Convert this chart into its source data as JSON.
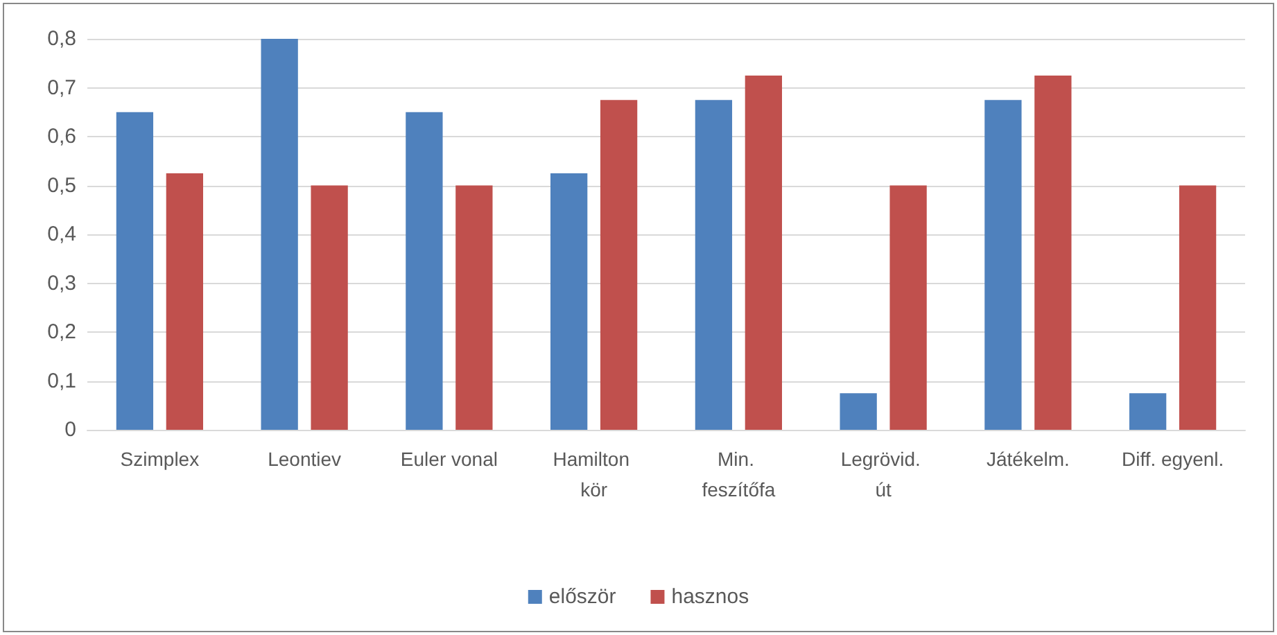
{
  "chart_data": {
    "type": "bar",
    "categories": [
      "Szimplex",
      "Leontiev",
      "Euler vonal",
      "Hamilton kör",
      "Min. feszítőfa",
      "Legrövid. út",
      "Játékelm.",
      "Diff. egyenl."
    ],
    "series": [
      {
        "name": "először",
        "color": "#4f81bd",
        "values": [
          0.65,
          0.8,
          0.65,
          0.525,
          0.675,
          0.075,
          0.675,
          0.075
        ]
      },
      {
        "name": "hasznos",
        "color": "#c0504d",
        "values": [
          0.525,
          0.5,
          0.5,
          0.675,
          0.725,
          0.5,
          0.725,
          0.5
        ]
      }
    ],
    "ylim": [
      0,
      0.8
    ],
    "yticks": [
      0,
      {
        "value": 0.1,
        "label": "0,1"
      },
      {
        "value": 0.2,
        "label": "0,2"
      },
      {
        "value": 0.3,
        "label": "0,3"
      },
      {
        "value": 0.4,
        "label": "0,4"
      },
      {
        "value": 0.5,
        "label": "0,5"
      },
      {
        "value": 0.6,
        "label": "0,6"
      },
      {
        "value": 0.7,
        "label": "0,7"
      },
      {
        "value": 0.8,
        "label": "0,8"
      }
    ],
    "grid": true,
    "legend": "bottom"
  }
}
